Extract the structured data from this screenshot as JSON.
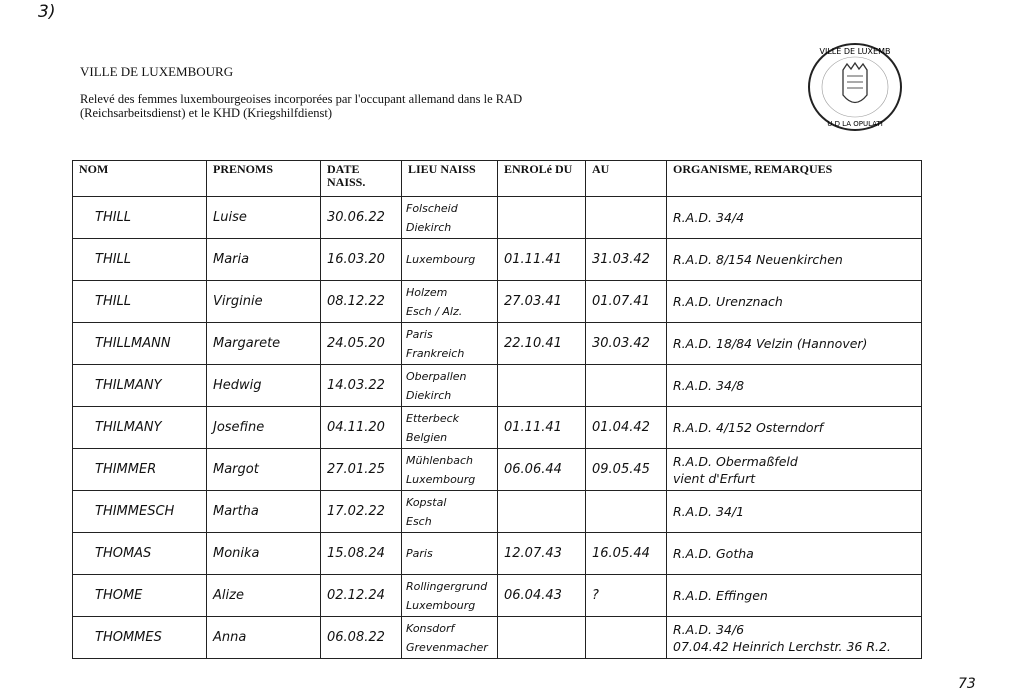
{
  "corner_mark": "3)",
  "header": {
    "city": "VILLE DE LUXEMBOURG",
    "subtitle": "Relevé des femmes luxembourgeoises incorporées par l'occupant allemand dans le RAD (Reichsarbeitsdienst) et le KHD (Kriegshilfdienst)"
  },
  "stamp": {
    "text": "VILLE DE LUXEMBOURG · BUREAU DE LA POPULATION",
    "icon": "coat-of-arms-seal"
  },
  "table": {
    "columns": [
      "NOM",
      "PRENOMS",
      "DATE NAISS.",
      "LIEU NAISS",
      "ENROLé DU",
      "AU",
      "ORGANISME, REMARQUES"
    ],
    "rows": [
      {
        "nom": "THILL",
        "prenom": "Luise",
        "date": "30.06.22",
        "lieu": "Folscheid\nDiekirch",
        "du": "",
        "au": "",
        "remarques": "R.A.D. 34/4"
      },
      {
        "nom": "THILL",
        "prenom": "Maria",
        "date": "16.03.20",
        "lieu": "Luxembourg",
        "du": "01.11.41",
        "au": "31.03.42",
        "remarques": "R.A.D. 8/154 Neuenkirchen"
      },
      {
        "nom": "THILL",
        "prenom": "Virginie",
        "date": "08.12.22",
        "lieu": "Holzem\nEsch / Alz.",
        "du": "27.03.41",
        "au": "01.07.41",
        "remarques": "R.A.D. Urenznach"
      },
      {
        "nom": "THILLMANN",
        "prenom": "Margarete",
        "date": "24.05.20",
        "lieu": "Paris\nFrankreich",
        "du": "22.10.41",
        "au": "30.03.42",
        "remarques": "R.A.D. 18/84 Velzin (Hannover)"
      },
      {
        "nom": "THILMANY",
        "prenom": "Hedwig",
        "date": "14.03.22",
        "lieu": "Oberpallen\nDiekirch",
        "du": "",
        "au": "",
        "remarques": "R.A.D. 34/8"
      },
      {
        "nom": "THILMANY",
        "prenom": "Josefine",
        "date": "04.11.20",
        "lieu": "Etterbeck\nBelgien",
        "du": "01.11.41",
        "au": "01.04.42",
        "remarques": "R.A.D. 4/152 Osterndorf"
      },
      {
        "nom": "THIMMER",
        "prenom": "Margot",
        "date": "27.01.25",
        "lieu": "Mühlenbach\nLuxembourg",
        "du": "06.06.44",
        "au": "09.05.45",
        "remarques": "R.A.D. Obermaßfeld\nvient d'Erfurt"
      },
      {
        "nom": "THIMMESCH",
        "prenom": "Martha",
        "date": "17.02.22",
        "lieu": "Kopstal\nEsch",
        "du": "",
        "au": "",
        "remarques": "R.A.D. 34/1"
      },
      {
        "nom": "THOMAS",
        "prenom": "Monika",
        "date": "15.08.24",
        "lieu": "Paris",
        "du": "12.07.43",
        "au": "16.05.44",
        "remarques": "R.A.D. Gotha"
      },
      {
        "nom": "THOME",
        "prenom": "Alize",
        "date": "02.12.24",
        "lieu": "Rollingergrund\nLuxembourg",
        "du": "06.04.43",
        "au": "?",
        "remarques": "R.A.D. Effingen"
      },
      {
        "nom": "THOMMES",
        "prenom": "Anna",
        "date": "06.08.22",
        "lieu": "Konsdorf\nGrevenmacher",
        "du": "",
        "au": "",
        "remarques": "R.A.D. 34/6\n07.04.42 Heinrich Lerchstr. 36 R.2."
      }
    ]
  },
  "page_number": "73"
}
